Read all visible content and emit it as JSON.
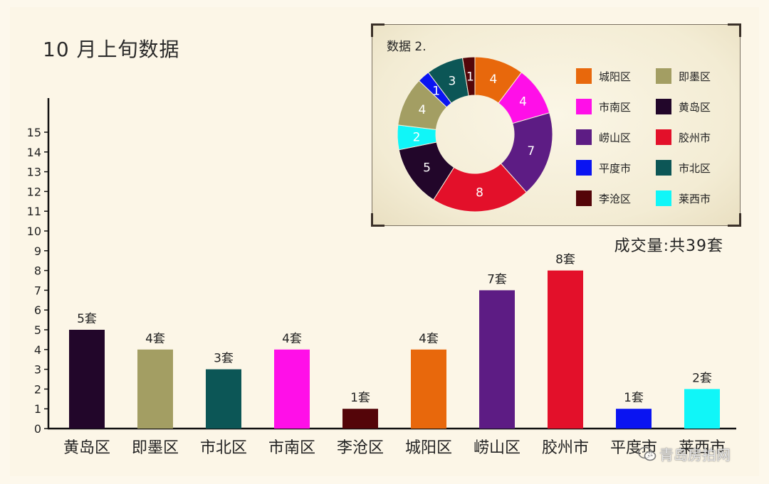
{
  "page": {
    "title": "10 月上旬数据",
    "total_label": "成交量:共39套",
    "watermark": "青岛房拍网"
  },
  "pie_panel": {
    "title": "数据 2."
  },
  "chart_data": [
    {
      "type": "bar",
      "categories": [
        "黄岛区",
        "即墨区",
        "市北区",
        "市南区",
        "李沧区",
        "城阳区",
        "崂山区",
        "胶州市",
        "平度市",
        "莱西市"
      ],
      "values": [
        5,
        4,
        3,
        4,
        1,
        4,
        7,
        8,
        1,
        2
      ],
      "data_labels": [
        "5套",
        "4套",
        "3套",
        "4套",
        "1套",
        "4套",
        "7套",
        "8套",
        "1套",
        "2套"
      ],
      "colors": [
        "#22062a",
        "#a39e63",
        "#0c5656",
        "#ff0fe8",
        "#540509",
        "#e8680c",
        "#5d1c84",
        "#e3102a",
        "#0a14f2",
        "#10f6f8"
      ],
      "ylim": [
        0,
        15
      ],
      "yticks": [
        "0",
        "1",
        "2",
        "3",
        "4",
        "5",
        "6",
        "7",
        "8",
        "9",
        "10",
        "11",
        "12",
        "13",
        "14",
        "15"
      ],
      "xlabel": "",
      "ylabel": ""
    },
    {
      "type": "pie",
      "donut": true,
      "order": [
        "城阳区",
        "市南区",
        "崂山区",
        "胶州市",
        "黄岛区",
        "莱西市",
        "即墨区",
        "平度市",
        "市北区",
        "李沧区"
      ],
      "values": [
        4,
        4,
        7,
        8,
        5,
        2,
        4,
        1,
        3,
        1
      ],
      "slice_labels": [
        "4",
        "4",
        "7",
        "8",
        "5",
        "2",
        "4",
        "1",
        "3",
        "1"
      ],
      "colors": [
        "#e8680c",
        "#ff0fe8",
        "#5d1c84",
        "#e3102a",
        "#22062a",
        "#10f6f8",
        "#a39e63",
        "#0a14f2",
        "#0c5656",
        "#540509"
      ],
      "legend": [
        {
          "label": "城阳区",
          "color": "#e8680c"
        },
        {
          "label": "即墨区",
          "color": "#a39e63"
        },
        {
          "label": "市南区",
          "color": "#ff0fe8"
        },
        {
          "label": "黄岛区",
          "color": "#22062a"
        },
        {
          "label": "崂山区",
          "color": "#5d1c84"
        },
        {
          "label": "胶州市",
          "color": "#e3102a"
        },
        {
          "label": "平度市",
          "color": "#0a14f2"
        },
        {
          "label": "市北区",
          "color": "#0c5656"
        },
        {
          "label": "李沧区",
          "color": "#540509"
        },
        {
          "label": "莱西市",
          "color": "#10f6f8"
        }
      ],
      "legend_placement": "right"
    }
  ]
}
